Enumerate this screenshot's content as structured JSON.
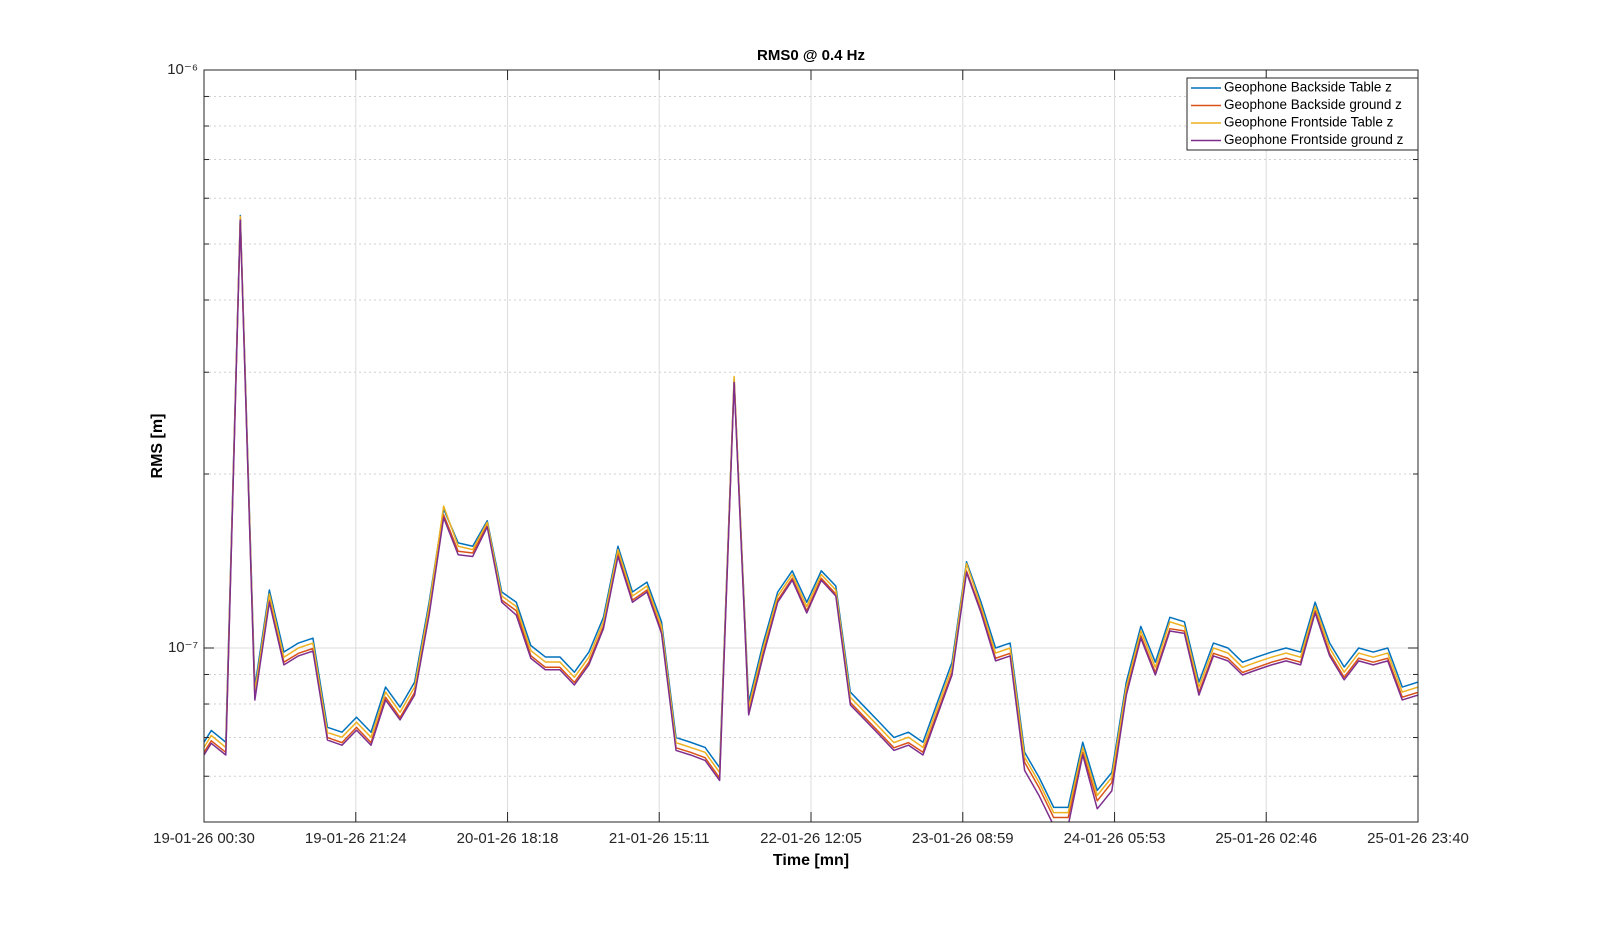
{
  "chart_data": {
    "type": "line",
    "title": "RMS0 @ 0.4 Hz",
    "x_label": "Time [mn]",
    "y_label": "RMS [m]",
    "log_y": true,
    "grid": true,
    "minor_grid": true,
    "legend_position": "northeast",
    "xlim": [
      "19-01-26 00:30",
      "25-01-26 23:40"
    ],
    "xticks": [
      "19-01-26 00:30",
      "19-01-26 21:24",
      "20-01-26 18:18",
      "21-01-26 15:11",
      "22-01-26 12:05",
      "23-01-26 08:59",
      "24-01-26 05:53",
      "25-01-26 02:46",
      "25-01-26 23:40"
    ],
    "ylim": [
      5e-08,
      1e-06
    ],
    "yticks": [
      {
        "value": 1e-07,
        "label": "10⁻⁷"
      },
      {
        "value": 1e-06,
        "label": "10⁻⁶"
      }
    ],
    "yminorticks": [
      6e-08,
      7e-08,
      8e-08,
      9e-08,
      2e-07,
      3e-07,
      4e-07,
      5e-07,
      6e-07,
      7e-07,
      8e-07,
      9e-07
    ],
    "x": [
      "19-01-26 00:30",
      "19-01-26 01:30",
      "19-01-26 03:30",
      "19-01-26 05:30",
      "19-01-26 07:30",
      "19-01-26 09:30",
      "19-01-26 11:30",
      "19-01-26 13:30",
      "19-01-26 15:30",
      "19-01-26 17:30",
      "19-01-26 19:30",
      "19-01-26 21:30",
      "19-01-26 23:30",
      "20-01-26 01:30",
      "20-01-26 03:30",
      "20-01-26 05:30",
      "20-01-26 07:30",
      "20-01-26 09:30",
      "20-01-26 11:30",
      "20-01-26 13:30",
      "20-01-26 15:30",
      "20-01-26 17:30",
      "20-01-26 19:30",
      "20-01-26 21:30",
      "20-01-26 23:30",
      "21-01-26 01:30",
      "21-01-26 03:30",
      "21-01-26 05:30",
      "21-01-26 07:30",
      "21-01-26 09:30",
      "21-01-26 11:30",
      "21-01-26 13:30",
      "21-01-26 15:30",
      "21-01-26 17:30",
      "21-01-26 19:30",
      "21-01-26 21:30",
      "21-01-26 23:30",
      "22-01-26 01:30",
      "22-01-26 03:30",
      "22-01-26 05:30",
      "22-01-26 07:30",
      "22-01-26 09:30",
      "22-01-26 11:30",
      "22-01-26 13:30",
      "22-01-26 15:30",
      "22-01-26 17:30",
      "22-01-26 19:30",
      "22-01-26 21:30",
      "22-01-26 23:30",
      "23-01-26 01:30",
      "23-01-26 03:30",
      "23-01-26 05:30",
      "23-01-26 07:30",
      "23-01-26 09:30",
      "23-01-26 11:30",
      "23-01-26 13:30",
      "23-01-26 15:30",
      "23-01-26 17:30",
      "23-01-26 19:30",
      "23-01-26 21:30",
      "23-01-26 23:30",
      "24-01-26 01:30",
      "24-01-26 03:30",
      "24-01-26 05:30",
      "24-01-26 07:30",
      "24-01-26 09:30",
      "24-01-26 11:30",
      "24-01-26 13:30",
      "24-01-26 15:30",
      "24-01-26 17:30",
      "24-01-26 19:30",
      "24-01-26 21:30",
      "24-01-26 23:30",
      "25-01-26 01:30",
      "25-01-26 03:30",
      "25-01-26 05:30",
      "25-01-26 07:30",
      "25-01-26 09:30",
      "25-01-26 11:30",
      "25-01-26 13:30",
      "25-01-26 15:30",
      "25-01-26 17:30",
      "25-01-26 19:30",
      "25-01-26 21:30",
      "25-01-26 23:40"
    ],
    "series": [
      {
        "name": "Geophone Backside Table z",
        "color": "#0072BD",
        "values": [
          6.87e-08,
          7.2e-08,
          6.87e-08,
          5.6e-07,
          8.56e-08,
          1.26e-07,
          9.84e-08,
          1.02e-07,
          1.04e-07,
          7.29e-08,
          7.15e-08,
          7.59e-08,
          7.15e-08,
          8.56e-08,
          7.9e-08,
          8.73e-08,
          1.2e-07,
          1.74e-07,
          1.52e-07,
          1.5e-07,
          1.66e-07,
          1.25e-07,
          1.2e-07,
          1.01e-07,
          9.65e-08,
          9.65e-08,
          9.08e-08,
          9.84e-08,
          1.13e-07,
          1.5e-07,
          1.25e-07,
          1.3e-07,
          1.11e-07,
          7e-08,
          6.87e-08,
          6.73e-08,
          6.21e-08,
          2.92e-07,
          8.06e-08,
          1.02e-07,
          1.25e-07,
          1.36e-07,
          1.2e-07,
          1.36e-07,
          1.28e-07,
          8.39e-08,
          7.9e-08,
          7.44e-08,
          7e-08,
          7.15e-08,
          6.87e-08,
          8.06e-08,
          9.45e-08,
          1.41e-07,
          1.2e-07,
          1e-07,
          1.02e-07,
          6.6e-08,
          5.97e-08,
          5.3e-08,
          5.3e-08,
          6.87e-08,
          5.67e-08,
          6.09e-08,
          8.73e-08,
          1.09e-07,
          9.45e-08,
          1.13e-07,
          1.11e-07,
          8.73e-08,
          1.02e-07,
          1e-07,
          9.45e-08,
          9.65e-08,
          9.84e-08,
          1e-07,
          9.84e-08,
          1.2e-07,
          1.02e-07,
          9.27e-08,
          1e-07,
          9.84e-08,
          1e-07,
          8.56e-08,
          8.73e-08
        ]
      },
      {
        "name": "Geophone Backside ground z",
        "color": "#D95319",
        "values": [
          6.6e-08,
          6.91e-08,
          6.6e-08,
          5.55e-07,
          8.22e-08,
          1.21e-07,
          9.45e-08,
          9.79e-08,
          9.98e-08,
          7e-08,
          6.86e-08,
          7.29e-08,
          6.86e-08,
          8.22e-08,
          7.58e-08,
          8.38e-08,
          1.15e-07,
          1.7e-07,
          1.47e-07,
          1.46e-07,
          1.63e-07,
          1.21e-07,
          1.16e-07,
          9.7e-08,
          9.26e-08,
          9.26e-08,
          8.72e-08,
          9.45e-08,
          1.09e-07,
          1.46e-07,
          1.21e-07,
          1.26e-07,
          1.07e-07,
          6.72e-08,
          6.6e-08,
          6.46e-08,
          5.96e-08,
          2.9e-07,
          7.74e-08,
          9.79e-08,
          1.21e-07,
          1.32e-07,
          1.16e-07,
          1.32e-07,
          1.24e-07,
          8.05e-08,
          7.58e-08,
          7.14e-08,
          6.72e-08,
          6.86e-08,
          6.6e-08,
          7.74e-08,
          9.07e-08,
          1.36e-07,
          1.16e-07,
          9.6e-08,
          9.79e-08,
          6.34e-08,
          5.73e-08,
          5.09e-08,
          5.09e-08,
          6.6e-08,
          5.44e-08,
          5.85e-08,
          8.38e-08,
          1.05e-07,
          9.07e-08,
          1.08e-07,
          1.07e-07,
          8.38e-08,
          9.79e-08,
          9.6e-08,
          9.07e-08,
          9.26e-08,
          9.45e-08,
          9.6e-08,
          9.45e-08,
          1.16e-07,
          9.79e-08,
          8.9e-08,
          9.6e-08,
          9.45e-08,
          9.6e-08,
          8.22e-08,
          8.38e-08
        ]
      },
      {
        "name": "Geophone Frontside Table z",
        "color": "#EDB120",
        "values": [
          6.73e-08,
          7.06e-08,
          6.73e-08,
          5.58e-07,
          8.39e-08,
          1.24e-07,
          9.64e-08,
          1e-07,
          1.02e-07,
          7.14e-08,
          7.01e-08,
          7.44e-08,
          7.01e-08,
          8.39e-08,
          7.74e-08,
          8.56e-08,
          1.18e-07,
          1.76e-07,
          1.5e-07,
          1.48e-07,
          1.65e-07,
          1.23e-07,
          1.18e-07,
          9.9e-08,
          9.46e-08,
          9.46e-08,
          8.9e-08,
          9.64e-08,
          1.11e-07,
          1.48e-07,
          1.23e-07,
          1.28e-07,
          1.09e-07,
          6.86e-08,
          6.73e-08,
          6.6e-08,
          6.09e-08,
          2.95e-07,
          7.9e-08,
          1e-07,
          1.23e-07,
          1.34e-07,
          1.18e-07,
          1.34e-07,
          1.26e-07,
          8.22e-08,
          7.74e-08,
          7.29e-08,
          6.86e-08,
          7.01e-08,
          6.73e-08,
          7.9e-08,
          9.26e-08,
          1.4e-07,
          1.18e-07,
          9.8e-08,
          1e-07,
          6.47e-08,
          5.85e-08,
          5.19e-08,
          5.19e-08,
          6.73e-08,
          5.56e-08,
          5.97e-08,
          8.56e-08,
          1.07e-07,
          9.26e-08,
          1.11e-07,
          1.09e-07,
          8.56e-08,
          1e-07,
          9.8e-08,
          9.26e-08,
          9.46e-08,
          9.64e-08,
          9.8e-08,
          9.64e-08,
          1.18e-07,
          1e-07,
          9.08e-08,
          9.8e-08,
          9.64e-08,
          9.8e-08,
          8.39e-08,
          8.56e-08
        ]
      },
      {
        "name": "Geophone Frontside ground z",
        "color": "#7E2F8E",
        "values": [
          6.53e-08,
          6.84e-08,
          6.53e-08,
          5.5e-07,
          8.13e-08,
          1.2e-07,
          9.35e-08,
          9.69e-08,
          9.88e-08,
          6.93e-08,
          6.79e-08,
          7.21e-08,
          6.79e-08,
          8.13e-08,
          7.51e-08,
          8.29e-08,
          1.14e-07,
          1.68e-07,
          1.45e-07,
          1.44e-07,
          1.62e-07,
          1.2e-07,
          1.14e-07,
          9.6e-08,
          9.17e-08,
          9.17e-08,
          8.63e-08,
          9.35e-08,
          1.08e-07,
          1.44e-07,
          1.2e-07,
          1.25e-07,
          1.06e-07,
          6.65e-08,
          6.53e-08,
          6.39e-08,
          5.9e-08,
          2.88e-07,
          7.66e-08,
          9.69e-08,
          1.2e-07,
          1.31e-07,
          1.15e-07,
          1.31e-07,
          1.23e-07,
          7.97e-08,
          7.51e-08,
          7.07e-08,
          6.65e-08,
          6.79e-08,
          6.53e-08,
          7.66e-08,
          8.98e-08,
          1.35e-07,
          1.15e-07,
          9.5e-08,
          9.69e-08,
          6.14e-08,
          5.55e-08,
          4.93e-08,
          4.93e-08,
          6.53e-08,
          5.27e-08,
          5.66e-08,
          8.29e-08,
          1.04e-07,
          8.98e-08,
          1.07e-07,
          1.06e-07,
          8.29e-08,
          9.69e-08,
          9.5e-08,
          8.98e-08,
          9.17e-08,
          9.35e-08,
          9.5e-08,
          9.35e-08,
          1.15e-07,
          9.69e-08,
          8.81e-08,
          9.5e-08,
          9.35e-08,
          9.5e-08,
          8.13e-08,
          8.29e-08
        ]
      }
    ]
  }
}
